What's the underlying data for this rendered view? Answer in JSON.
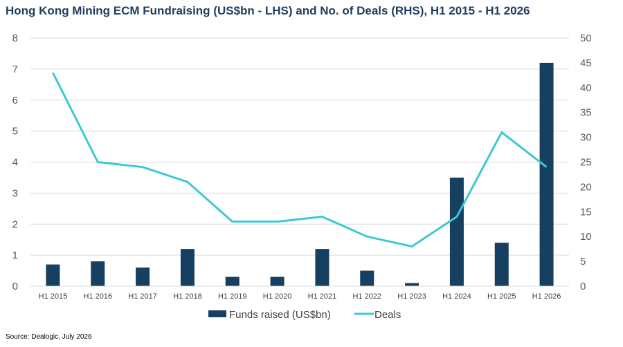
{
  "header": {
    "title": "Hong Kong Mining ECM Fundraising (US$bn - LHS) and No. of Deals (RHS), H1 2015 - H1 2026"
  },
  "footer": {
    "source": "Source: Dealogic, July 2026"
  },
  "colors": {
    "bars": "#173f5f",
    "line": "#3cc8d8",
    "grid": "#d9d9d9",
    "title": "#1d3d5e"
  },
  "chart_data": {
    "type": "bar",
    "title": "Hong Kong Mining ECM Fundraising (US$bn - LHS) and No. of Deals (RHS), H1 2015 - H1 2026",
    "categories": [
      "H1 2015",
      "H1 2016",
      "H1 2017",
      "H1 2018",
      "H1 2019",
      "H1 2020",
      "H1 2021",
      "H1 2022",
      "H1 2023",
      "H1 2024",
      "H1 2025",
      "H1 2026"
    ],
    "series": [
      {
        "name": "Funds raised (US$bn)",
        "type": "bar",
        "axis": "left",
        "values": [
          0.7,
          0.8,
          0.6,
          1.2,
          0.3,
          0.3,
          1.2,
          0.5,
          0.1,
          3.5,
          1.4,
          7.2
        ]
      },
      {
        "name": "Deals",
        "type": "line",
        "axis": "right",
        "values": [
          43,
          25,
          24,
          21,
          13,
          13,
          14,
          10,
          8,
          14,
          31,
          24
        ]
      }
    ],
    "ylim_left": [
      0,
      8
    ],
    "yticks_left": [
      "0",
      "1",
      "2",
      "3",
      "4",
      "5",
      "6",
      "7",
      "8"
    ],
    "ylim_right": [
      0,
      50
    ],
    "yticks_right": [
      "0",
      "5",
      "10",
      "15",
      "20",
      "25",
      "30",
      "35",
      "40",
      "45",
      "50"
    ],
    "grid": true,
    "legend_position": "bottom"
  }
}
